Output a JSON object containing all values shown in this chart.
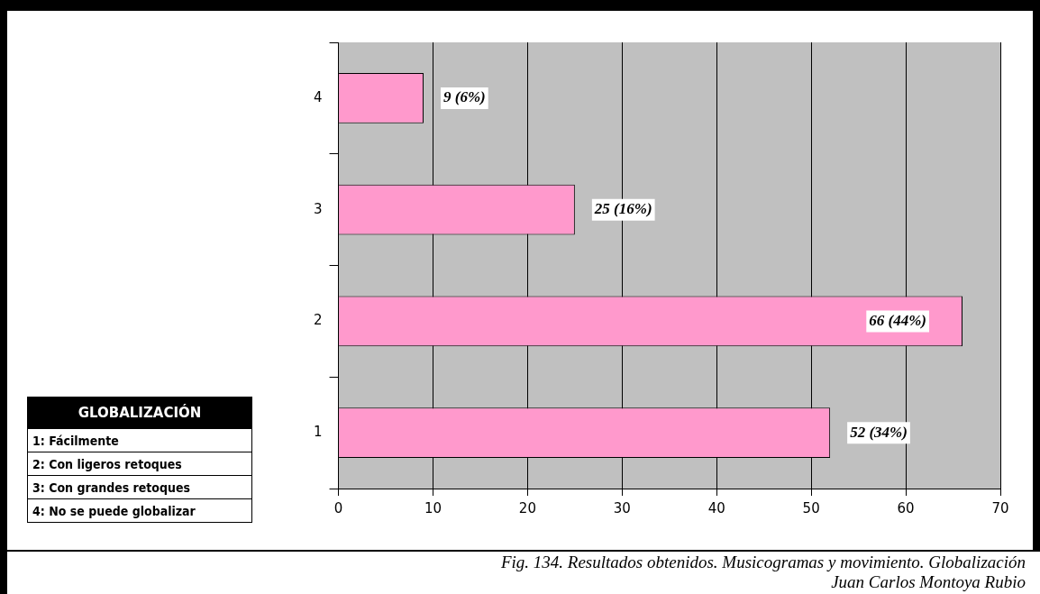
{
  "chart_data": {
    "type": "bar",
    "orientation": "horizontal",
    "categories": [
      "4",
      "3",
      "2",
      "1"
    ],
    "values": [
      9,
      25,
      66,
      52
    ],
    "color": "#ff99cc",
    "value_labels": [
      "9 (6%)",
      "25 (16%)",
      "66 (44%)",
      "52 (34%)"
    ],
    "xlim": [
      0,
      70
    ],
    "xticks": [
      0,
      10,
      20,
      30,
      40,
      50,
      60,
      70
    ],
    "grid": "x",
    "legend": false,
    "legend_title": "GLOBALIZACIÓN",
    "annotations": [
      "1: Fácilmente",
      "2: Con ligeros retoques",
      "3: Con grandes retoques",
      "4: No se puede globalizar",
      "Fig. 134. Resultados obtenidos. Musicogramas y movimiento. Globalización",
      "Juan Carlos Montoya Rubio"
    ]
  }
}
